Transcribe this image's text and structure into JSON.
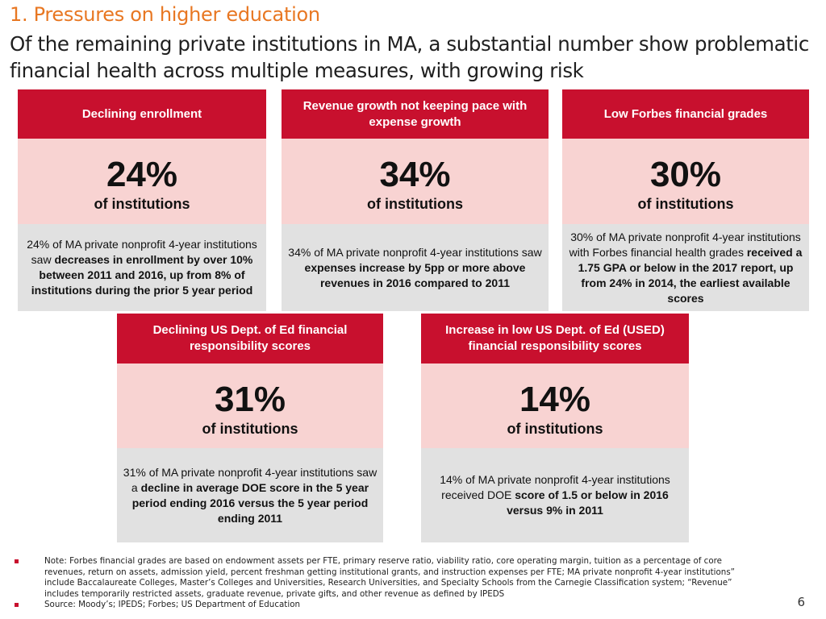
{
  "header": {
    "kicker": "1. Pressures on higher education",
    "title": "Of the remaining private institutions in MA, a substantial number show problematic financial health across multiple measures, with growing risk"
  },
  "cards": [
    {
      "header": "Declining enrollment",
      "percent": "24%",
      "subtitle": "of institutions",
      "desc_pre": "24% of MA private nonprofit 4-year institutions saw ",
      "desc_bold": "decreases in enrollment by over 10% between 2011 and 2016, up from 8% of institutions during the prior 5 year period",
      "desc_post": ""
    },
    {
      "header": "Revenue growth not keeping pace with expense growth",
      "percent": "34%",
      "subtitle": "of institutions",
      "desc_pre": "34% of MA private nonprofit 4-year institutions saw ",
      "desc_bold": "expenses increase by 5pp or more above revenues in 2016 compared to 2011",
      "desc_post": ""
    },
    {
      "header": "Low Forbes financial grades",
      "percent": "30%",
      "subtitle": "of institutions",
      "desc_pre": "30% of MA private nonprofit 4-year institutions with Forbes financial health grades ",
      "desc_bold": "received a 1.75 GPA or below in the 2017 report, up from 24% in 2014, the earliest available scores",
      "desc_post": ""
    },
    {
      "header": "Declining US Dept. of Ed financial responsibility scores",
      "percent": "31%",
      "subtitle": "of institutions",
      "desc_pre": "31% of MA private nonprofit 4-year institutions saw a ",
      "desc_bold": "decline in average DOE score in the 5 year period ending 2016 versus the 5 year period ending 2011",
      "desc_post": ""
    },
    {
      "header": "Increase in low US Dept. of Ed (USED) financial responsibility scores",
      "percent": "14%",
      "subtitle": "of institutions",
      "desc_pre": "14% of MA private nonprofit 4-year institutions received DOE ",
      "desc_bold": "score of 1.5 or below in 2016 versus 9% in 2011",
      "desc_post": ""
    }
  ],
  "footer": {
    "note": "Note: Forbes financial grades are based on endowment assets per FTE, primary reserve ratio, viability ratio, core operating margin, tuition as a percentage of core revenues, return on assets, admission yield, percent freshman getting institutional grants, and instruction expenses per FTE; MA private nonprofit 4-year institutions” include Baccalaureate Colleges, Master’s Colleges and Universities, Research Universities, and Specialty Schools from the Carnegie Classification system; “Revenue” includes temporarily restricted assets, graduate revenue, private gifts, and other revenue as defined by IPEDS",
    "source": "Source: Moody’s; IPEDS; Forbes; US Department of Education",
    "page_number": "6"
  },
  "colors": {
    "accent_red": "#c8102e",
    "kicker_orange": "#e87722",
    "stat_pink": "#f8d3d2",
    "desc_gray": "#e1e1e1"
  }
}
